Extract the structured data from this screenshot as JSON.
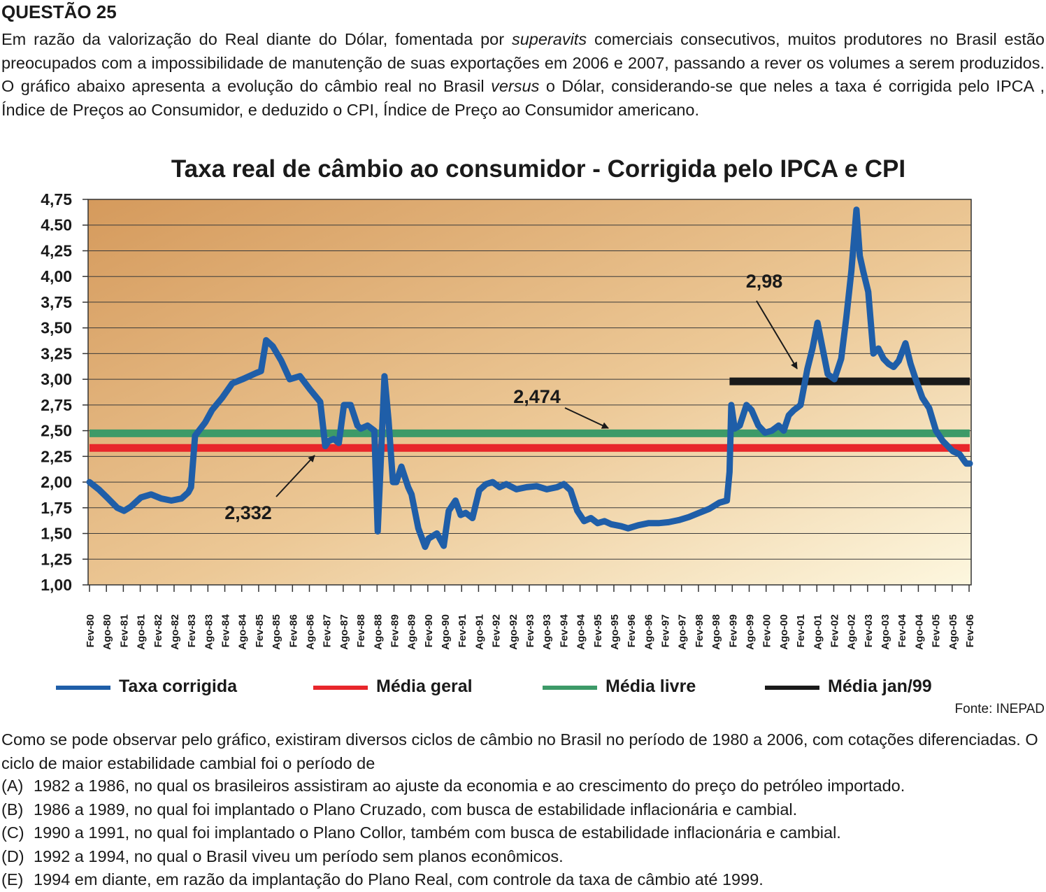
{
  "question": {
    "title": "QUESTÃO 25",
    "intro": "Em razão da valorização do Real diante do Dólar, fomentada por superavits comerciais consecutivos, muitos produtores no Brasil estão preocupados com a impossibilidade de manutenção de suas exportações em 2006 e 2007, passando a rever os volumes a serem produzidos. O gráfico abaixo apresenta a evolução do câmbio real no Brasil versus o Dólar, considerando-se que neles a taxa é corrigida pelo IPCA , Índice de Preços ao Consumidor, e deduzido o CPI, Índice de Preço ao Consumidor americano.",
    "stem": "Como se pode observar pelo gráfico, existiram diversos ciclos de câmbio no Brasil no período de 1980 a 2006, com cotações diferenciadas. O ciclo de maior estabilidade cambial foi o período de",
    "options": [
      {
        "letter": "(A)",
        "text": "1982 a 1986, no qual os brasileiros assistiram ao ajuste da economia e ao crescimento do preço do petróleo importado."
      },
      {
        "letter": "(B)",
        "text": "1986 a 1989, no qual foi implantado o Plano Cruzado, com busca de estabilidade inflacionária e cambial."
      },
      {
        "letter": "(C)",
        "text": "1990 a 1991, no qual foi implantado o Plano Collor, também com busca de estabilidade inflacionária e cambial."
      },
      {
        "letter": "(D)",
        "text": "1992 a 1994, no qual o Brasil viveu um período sem planos econômicos."
      },
      {
        "letter": "(E)",
        "text": "1994 em diante, em razão da implantação do Plano Real, com controle da taxa de câmbio até 1999."
      }
    ]
  },
  "source": "Fonte: INEPAD",
  "chart_data": {
    "type": "line",
    "title": "Taxa real de câmbio ao consumidor - Corrigida pelo IPCA e CPI",
    "xlabel": "",
    "ylabel": "",
    "ylim": [
      1.0,
      4.75
    ],
    "yticks": [
      "1,00",
      "1,25",
      "1,50",
      "1,75",
      "2,00",
      "2,25",
      "2,50",
      "2,75",
      "3,00",
      "3,25",
      "3,50",
      "3,75",
      "4,00",
      "4,25",
      "4.50",
      "4,75"
    ],
    "categories": [
      "Fev-80",
      "Ago-80",
      "Fev-81",
      "Ago-81",
      "Fev-82",
      "Ago-82",
      "Fev-83",
      "Ago-83",
      "Fev-84",
      "Ago-84",
      "Fev-85",
      "Ago-85",
      "Fev-86",
      "Ago-86",
      "Fev-87",
      "Ago-87",
      "Fev-88",
      "Ago-88",
      "Fev-89",
      "Ago-89",
      "Fev-90",
      "Ago-90",
      "Fev-91",
      "Ago-91",
      "Fev-92",
      "Ago-92",
      "Fev-93",
      "Ago-93",
      "Fev-94",
      "Ago-94",
      "Fev-95",
      "Ago-95",
      "Fev-96",
      "Ago-96",
      "Fev-97",
      "Ago-97",
      "Fev-98",
      "Ago-98",
      "Fev-99",
      "Ago-99",
      "Fev-00",
      "Ago-00",
      "Fev-01",
      "Ago-01",
      "Fev-02",
      "Ago-02",
      "Fev-03",
      "Ago-03",
      "Fev-04",
      "Ago-04",
      "Fev-05",
      "Ago-05",
      "Fev-06"
    ],
    "grid": true,
    "legend_position": "bottom",
    "series": [
      {
        "name": "Taxa corrigida",
        "color": "#1f5ea8",
        "x": [
          1980.08,
          1980.35,
          1980.6,
          1980.9,
          1981.1,
          1981.3,
          1981.6,
          1981.9,
          1982.2,
          1982.5,
          1982.8,
          1983.0,
          1983.08,
          1983.2,
          1983.5,
          1983.7,
          1984.0,
          1984.3,
          1984.6,
          1985.0,
          1985.15,
          1985.3,
          1985.5,
          1985.75,
          1986.0,
          1986.3,
          1986.6,
          1986.9,
          1987.05,
          1987.15,
          1987.3,
          1987.45,
          1987.6,
          1987.8,
          1988.0,
          1988.1,
          1988.3,
          1988.5,
          1988.6,
          1988.8,
          1988.92,
          1989.05,
          1989.15,
          1989.3,
          1989.5,
          1989.6,
          1989.8,
          1990.0,
          1990.1,
          1990.35,
          1990.55,
          1990.7,
          1990.9,
          1991.05,
          1991.2,
          1991.4,
          1991.6,
          1991.8,
          1992.0,
          1992.2,
          1992.4,
          1992.7,
          1993.0,
          1993.3,
          1993.6,
          1993.9,
          1994.1,
          1994.3,
          1994.5,
          1994.7,
          1994.9,
          1995.1,
          1995.3,
          1995.5,
          1995.8,
          1996.0,
          1996.3,
          1996.6,
          1996.9,
          1997.2,
          1997.5,
          1997.8,
          1998.1,
          1998.4,
          1998.7,
          1998.92,
          1999.0,
          1999.05,
          1999.15,
          1999.3,
          1999.5,
          1999.65,
          1999.85,
          2000.05,
          2000.25,
          2000.45,
          2000.6,
          2000.75,
          2000.9,
          2001.1,
          2001.3,
          2001.45,
          2001.6,
          2001.75,
          2001.9,
          2002.1,
          2002.3,
          2002.45,
          2002.6,
          2002.75,
          2002.85,
          2002.95,
          2003.1,
          2003.25,
          2003.4,
          2003.55,
          2003.7,
          2003.85,
          2004.0,
          2004.2,
          2004.35,
          2004.5,
          2004.7,
          2004.9,
          2005.1,
          2005.3,
          2005.45,
          2005.6,
          2005.8,
          2005.95,
          2006.0,
          2006.1
        ],
        "values": [
          2.0,
          1.93,
          1.85,
          1.75,
          1.72,
          1.76,
          1.85,
          1.88,
          1.84,
          1.82,
          1.84,
          1.9,
          1.95,
          2.45,
          2.58,
          2.7,
          2.82,
          2.96,
          3.0,
          3.06,
          3.08,
          3.38,
          3.32,
          3.18,
          3.0,
          3.03,
          2.9,
          2.78,
          2.35,
          2.4,
          2.42,
          2.38,
          2.75,
          2.75,
          2.55,
          2.52,
          2.55,
          2.5,
          1.52,
          3.03,
          2.6,
          2.0,
          2.0,
          2.15,
          1.95,
          1.88,
          1.55,
          1.37,
          1.45,
          1.5,
          1.38,
          1.72,
          1.82,
          1.68,
          1.7,
          1.65,
          1.92,
          1.98,
          2.0,
          1.95,
          1.98,
          1.93,
          1.95,
          1.96,
          1.93,
          1.95,
          1.98,
          1.92,
          1.72,
          1.62,
          1.65,
          1.6,
          1.62,
          1.59,
          1.57,
          1.55,
          1.58,
          1.6,
          1.6,
          1.61,
          1.63,
          1.66,
          1.7,
          1.74,
          1.8,
          1.82,
          2.1,
          2.75,
          2.52,
          2.55,
          2.75,
          2.7,
          2.55,
          2.48,
          2.5,
          2.55,
          2.5,
          2.65,
          2.7,
          2.75,
          3.1,
          3.3,
          3.55,
          3.3,
          3.05,
          3.0,
          3.2,
          3.6,
          4.05,
          4.65,
          4.2,
          4.05,
          3.85,
          3.25,
          3.3,
          3.2,
          3.15,
          3.12,
          3.18,
          3.35,
          3.15,
          3.0,
          2.82,
          2.72,
          2.5,
          2.4,
          2.35,
          2.3,
          2.27,
          2.2,
          2.18,
          2.18
        ]
      },
      {
        "name": "Média geral",
        "color": "#e8262b",
        "x": [
          1980.0,
          2006.1
        ],
        "values": [
          2.332,
          2.332
        ]
      },
      {
        "name": "Média livre",
        "color": "#3d9a68",
        "x": [
          1980.0,
          2006.1
        ],
        "values": [
          2.474,
          2.474
        ]
      },
      {
        "name": "Média jan/99",
        "color": "#1a1a1a",
        "x": [
          1999.0,
          2006.1
        ],
        "values": [
          2.98,
          2.98
        ]
      }
    ],
    "annotations": [
      {
        "text": "2,332",
        "target_series": "Média geral"
      },
      {
        "text": "2,474",
        "target_series": "Média livre"
      },
      {
        "text": "2,98",
        "target_series": "Média jan/99"
      }
    ]
  }
}
